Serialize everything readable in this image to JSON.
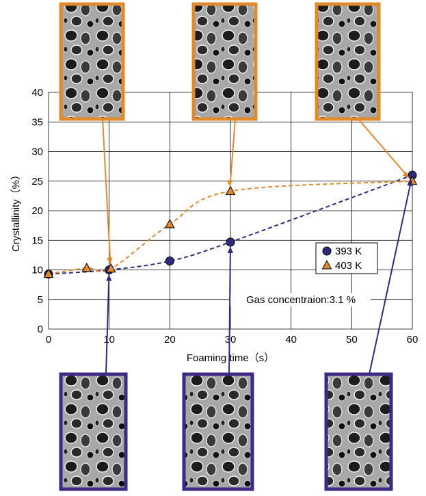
{
  "chart_data": {
    "type": "line",
    "x_label": "Foaming time（s）",
    "y_label": "Crystallinity（%）",
    "annotation": "Gas concentraion:3.1 %",
    "xlim": [
      0,
      60
    ],
    "xticks": [
      0,
      10,
      20,
      30,
      40,
      50,
      60
    ],
    "ylim": [
      0,
      40
    ],
    "yticks": [
      0,
      5,
      10,
      15,
      20,
      25,
      30,
      35,
      40
    ],
    "grid": true,
    "legend": "right",
    "series": [
      {
        "name": "393 K",
        "color": "#2e2a7e",
        "marker": "circle",
        "x": [
          0,
          10,
          20,
          30,
          60
        ],
        "values": [
          9.3,
          10,
          11.5,
          14.7,
          26
        ]
      },
      {
        "name": "403 K",
        "color": "#e08a2c",
        "marker": "triangle",
        "x": [
          0,
          6.3,
          10.3,
          20,
          30,
          60
        ],
        "values": [
          9.3,
          10.3,
          10.2,
          17.7,
          23.3,
          25
        ]
      }
    ]
  }
}
